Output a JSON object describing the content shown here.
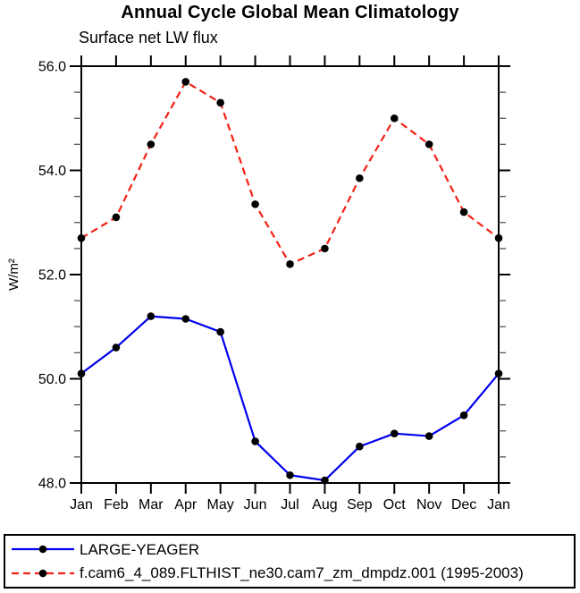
{
  "page": {
    "background": "#ffffff"
  },
  "chart_data": {
    "type": "line",
    "title": "Annual Cycle Global Mean Climatology",
    "subtitle": "Surface net LW flux",
    "ylabel": "W/m²",
    "xlabel": "",
    "categories": [
      "Jan",
      "Feb",
      "Mar",
      "Apr",
      "May",
      "Jun",
      "Jul",
      "Aug",
      "Sep",
      "Oct",
      "Nov",
      "Dec",
      "Jan"
    ],
    "ylim": [
      48.0,
      56.0
    ],
    "y_major_step": 2.0,
    "y_minor_step": 0.5,
    "y_tick_labels": [
      "48.0",
      "50.0",
      "52.0",
      "54.0",
      "56.0"
    ],
    "grid": false,
    "legend_position": "bottom-left-box",
    "marker": "filled-circle",
    "marker_color": "#000000",
    "axis_color": "#000000",
    "series": [
      {
        "name": "LARGE-YEAGER",
        "color": "#0000ee",
        "line_style": "solid",
        "values": [
          50.1,
          50.6,
          51.2,
          51.15,
          50.9,
          48.8,
          48.15,
          48.05,
          48.7,
          48.95,
          48.9,
          49.3,
          50.1
        ]
      },
      {
        "name": "f.cam6_4_089.FLTHIST_ne30.cam7_zm_dmpdz.001 (1995-2003)",
        "color": "#f42015",
        "line_style": "dashed",
        "values": [
          52.7,
          53.1,
          54.5,
          55.7,
          55.3,
          53.35,
          52.2,
          52.5,
          53.85,
          55.0,
          54.5,
          53.2,
          52.7
        ]
      }
    ]
  }
}
